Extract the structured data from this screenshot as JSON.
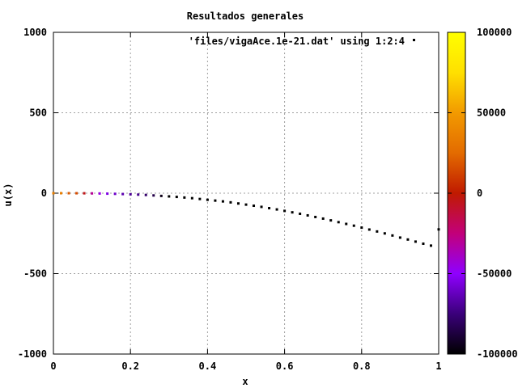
{
  "chart_data": {
    "type": "scatter",
    "title": "Resultados generales",
    "xlabel": "x",
    "ylabel": "u(x)",
    "xlim": [
      0,
      1
    ],
    "ylim": [
      -1000,
      1000
    ],
    "x_ticks": [
      0,
      0.2,
      0.4,
      0.6,
      0.8,
      1
    ],
    "x_tick_labels": [
      "0",
      "0.2",
      "0.4",
      "0.6",
      "0.8",
      "1"
    ],
    "y_ticks": [
      -1000,
      -500,
      0,
      500,
      1000
    ],
    "y_tick_labels": [
      "-1000",
      "-500",
      "0",
      "500",
      "1000"
    ],
    "grid": true,
    "legend": {
      "label": "'files/vigaAce.1e-21.dat' using 1:2:4",
      "position": "top-right"
    },
    "colorbar": {
      "range": [
        -100000,
        100000
      ],
      "ticks": [
        -100000,
        -50000,
        0,
        50000,
        100000
      ],
      "tick_labels": [
        "-100000",
        "-50000",
        "0",
        "50000",
        "100000"
      ],
      "palette": [
        "#000000",
        "#3a007a",
        "#8f00ff",
        "#c2007a",
        "#c01a00",
        "#e36b00",
        "#f29a00",
        "#ffe000",
        "#ffff00"
      ]
    },
    "series": [
      {
        "x": [
          0,
          0.02,
          0.04,
          0.06,
          0.08,
          0.1,
          0.12,
          0.14,
          0.16,
          0.18,
          0.2,
          0.22,
          0.24,
          0.26,
          0.28,
          0.3,
          0.32,
          0.34,
          0.36,
          0.38,
          0.4,
          0.42,
          0.44,
          0.46,
          0.48,
          0.5,
          0.52,
          0.54,
          0.56,
          0.58,
          0.6,
          0.62,
          0.64,
          0.66,
          0.68,
          0.7,
          0.72,
          0.74,
          0.76,
          0.78,
          0.8,
          0.82,
          0.84,
          0.86,
          0.88,
          0.9,
          0.92,
          0.94,
          0.96,
          0.98,
          1.0
        ],
        "y": [
          0,
          0,
          -0.1,
          -0.3,
          -0.6,
          -1.2,
          -1.9,
          -2.8,
          -4,
          -5.4,
          -7,
          -8.9,
          -11,
          -14,
          -17,
          -20,
          -23,
          -27,
          -31,
          -36,
          -41,
          -46,
          -51,
          -57,
          -64,
          -71,
          -78,
          -85,
          -93,
          -101,
          -110,
          -119,
          -128,
          -138,
          -148,
          -158,
          -169,
          -180,
          -191,
          -202,
          -214,
          -226,
          -238,
          -250,
          -263,
          -276,
          -288,
          -301,
          -314,
          -326,
          -225
        ],
        "color_value": [
          35000,
          35000,
          20000,
          15000,
          -5000,
          -30000,
          -45000,
          -55000,
          -60000,
          -65000,
          -70000,
          -72000,
          -78000,
          -85000,
          -95000,
          -100000,
          -100000,
          -100000,
          -100000,
          -100000,
          -100000,
          -100000,
          -100000,
          -100000,
          -100000,
          -100000,
          -100000,
          -100000,
          -100000,
          -100000,
          -100000,
          -100000,
          -100000,
          -100000,
          -100000,
          -100000,
          -100000,
          -100000,
          -100000,
          -100000,
          -100000,
          -100000,
          -100000,
          -100000,
          -100000,
          -100000,
          -100000,
          -100000,
          -100000,
          -100000,
          -100000
        ]
      }
    ]
  }
}
